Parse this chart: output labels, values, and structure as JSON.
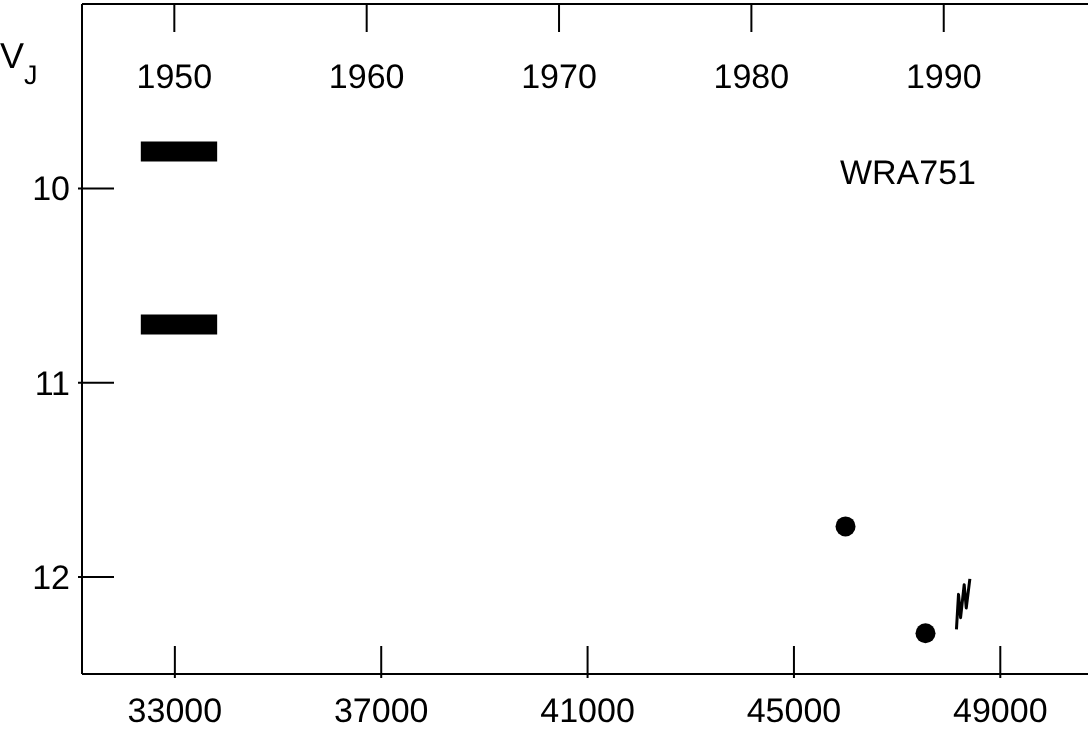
{
  "chart_data": {
    "type": "line",
    "ylabel": "V$_{J}$",
    "annotations": [
      "WRA751"
    ],
    "xlim": [
      31200,
      50700
    ],
    "xticks": [
      33000,
      37000,
      41000,
      45000,
      49000
    ],
    "x2lim": [
      1945.2,
      1997.5
    ],
    "x2ticks": [
      1950,
      1960,
      1970,
      1980,
      1990
    ],
    "ylim": [
      12.5,
      9.05
    ],
    "yticks": [
      10,
      11,
      12
    ],
    "series": [
      {
        "color": "#000000",
        "x": [
          32340,
          33820
        ],
        "values": [
          9.81,
          9.81
        ]
      },
      {
        "color": "#000000",
        "x": [
          32340,
          33820
        ],
        "values": [
          10.7,
          10.7
        ]
      },
      {
        "type": "scatter",
        "marker": "circle",
        "color": "#000000",
        "x": [
          46000,
          47550
        ],
        "values": [
          11.74,
          12.29
        ]
      },
      {
        "color": "#000000",
        "x": [
          48150,
          48190,
          48230,
          48300,
          48340,
          48410
        ],
        "values": [
          12.27,
          12.09,
          12.21,
          12.04,
          12.16,
          12.01
        ]
      }
    ]
  }
}
